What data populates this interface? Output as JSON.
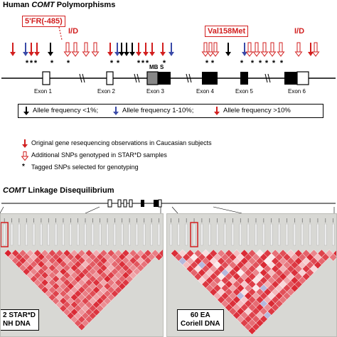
{
  "title_prefix": "Human ",
  "title_gene": "COMT",
  "title_suffix": " Polymorphisms",
  "callouts": {
    "fr": "5'FR(-485)",
    "id_left": "I/D",
    "val": "Val158Met",
    "id_right": "I/D",
    "mb": "MB",
    "s": "S"
  },
  "exons": [
    "Exon 1",
    "Exon 2",
    "Exon 3",
    "Exon 4",
    "Exon 5",
    "Exon 6"
  ],
  "legend": [
    "Allele frequency <1%;",
    "Allele frequency 1-10%;",
    "Allele frequency >10%"
  ],
  "key": [
    "Original gene resequencing  observations in Caucasian subjects",
    "Additional SNPs genotyped in STAR*D samples",
    "Tagged SNPs selected for genotyping"
  ],
  "ld_title_gene": "COMT",
  "ld_title_suffix": " Linkage Disequilibrium",
  "panels": {
    "left_line1": "2 STAR*D",
    "left_line2": "NH DNA",
    "right_line1": "60 EA",
    "right_line2": "Coriell DNA"
  },
  "colors": {
    "red": "#d21f1f",
    "blue": "#3a4aa8",
    "ld_high": "#d9232e",
    "ld_low": "#ffffff",
    "ld_blue": "#b5b8dc"
  },
  "ld_data": {
    "left_matrix": [
      [
        1.0,
        0.92,
        0.68,
        0.41,
        0.9,
        0.55,
        0.83,
        0.74,
        0.95,
        0.44,
        0.62,
        0.88,
        0.37,
        0.71,
        0.8,
        0.52,
        0.93,
        0.66,
        0.48,
        0.85,
        0.59,
        0.91
      ],
      [
        0.46,
        0.88,
        0.73,
        0.35,
        0.97,
        0.61,
        0.82,
        0.54,
        0.79,
        0.92,
        0.43,
        0.7,
        0.86,
        0.51,
        0.64,
        0.95,
        0.39,
        0.76,
        0.84,
        0.57,
        0.9
      ],
      [
        0.69,
        0.94,
        0.47,
        0.83,
        0.58,
        0.75,
        0.99,
        0.4,
        0.66,
        0.87,
        0.53,
        0.78,
        0.93,
        0.45,
        0.71,
        0.6,
        0.89,
        0.36,
        0.81
      ],
      [
        0.87,
        0.5,
        0.72,
        0.96,
        0.42,
        0.65,
        0.8,
        0.57,
        0.91,
        0.34,
        0.74,
        0.85,
        0.48,
        0.68,
        0.94,
        0.55,
        0.77,
        0.63
      ],
      [
        0.62,
        0.9,
        0.38,
        0.77,
        0.86,
        0.49,
        0.7,
        0.95,
        0.44,
        0.81,
        0.59,
        0.92,
        0.36,
        0.73,
        0.88,
        0.52,
        0.67
      ],
      [
        0.93,
        0.55,
        0.81,
        0.47,
        0.68,
        0.97,
        0.39,
        0.76,
        0.85,
        0.6,
        0.9,
        0.43,
        0.72,
        0.58,
        0.84,
        0.49
      ],
      [
        0.41,
        0.78,
        0.91,
        0.63,
        0.35,
        0.82,
        0.56,
        0.94,
        0.69,
        0.46,
        0.75,
        0.87,
        0.52,
        0.96,
        0.4
      ],
      [
        0.84,
        0.6,
        0.45,
        0.89,
        0.73,
        0.51,
        0.92,
        0.37,
        0.8,
        0.66,
        0.98,
        0.44,
        0.71,
        0.57
      ],
      [
        0.57,
        0.95,
        0.7,
        0.42,
        0.86,
        0.64,
        0.48,
        0.83,
        0.93,
        0.39,
        0.61,
        0.79,
        0.9
      ],
      [
        0.76,
        0.43,
        0.88,
        0.59,
        0.97,
        0.36,
        0.74,
        0.52,
        0.67,
        0.85,
        0.47,
        0.94
      ],
      [
        0.91,
        0.68,
        0.53,
        0.8,
        0.45,
        0.89,
        0.62,
        0.96,
        0.38,
        0.72,
        0.83
      ],
      [
        0.49,
        0.86,
        0.75,
        0.4,
        0.93,
        0.58,
        0.81,
        0.46,
        0.69,
        0.9
      ],
      [
        0.82,
        0.37,
        0.64,
        0.95,
        0.54,
        0.77,
        0.42,
        0.87,
        0.6
      ],
      [
        0.65,
        0.92,
        0.48,
        0.71,
        0.85,
        0.39,
        0.96,
        0.56
      ],
      [
        0.44,
        0.79,
        0.9,
        0.58,
        0.67,
        0.94,
        0.51
      ],
      [
        0.88,
        0.55,
        0.73,
        0.41,
        0.83,
        0.62
      ],
      [
        0.6,
        0.97,
        0.47,
        0.78,
        0.92
      ],
      [
        0.93,
        0.45,
        0.69,
        0.86
      ],
      [
        0.52,
        0.84,
        0.74
      ],
      [
        0.76,
        0.58
      ],
      [
        0.89
      ]
    ],
    "right_matrix": [
      [
        0.95,
        0.2,
        0.88,
        0.7,
        0.15,
        0.92,
        0.6,
        0.85,
        0.3,
        0.97,
        0.78,
        0.1,
        0.9,
        0.65,
        0.8,
        0.25,
        0.93,
        0.72,
        0.55,
        0.86,
        0.4,
        0.98
      ],
      [
        0.75,
        0.9,
        0.1,
        0.82,
        0.96,
        0.35,
        0.68,
        0.91,
        0.2,
        0.87,
        0.58,
        0.94,
        0.12,
        0.79,
        0.88,
        0.45,
        0.7,
        0.97,
        0.3,
        0.84,
        0.62
      ],
      [
        0.88,
        0.4,
        0.93,
        0.66,
        0.18,
        0.9,
        0.74,
        0.25,
        0.95,
        0.62,
        0.85,
        0.08,
        0.91,
        0.5,
        0.77,
        0.96,
        0.22,
        0.83,
        0.69
      ],
      [
        0.3,
        0.86,
        0.72,
        0.94,
        0.1,
        0.81,
        0.65,
        0.92,
        0.38,
        0.78,
        0.97,
        0.15,
        0.88,
        0.6,
        0.9,
        0.28,
        0.74,
        0.95
      ],
      [
        0.92,
        0.15,
        0.8,
        0.45,
        0.89,
        0.22,
        0.97,
        0.58,
        0.84,
        0.12,
        0.71,
        0.93,
        0.35,
        0.86,
        0.64,
        0.9,
        0.18
      ],
      [
        0.7,
        0.95,
        0.25,
        0.87,
        0.62,
        0.91,
        0.08,
        0.79,
        0.55,
        0.96,
        0.3,
        0.82,
        0.68,
        0.94,
        0.2,
        0.76
      ],
      [
        0.85,
        0.35,
        0.9,
        0.1,
        0.76,
        0.94,
        0.48,
        0.88,
        0.14,
        0.83,
        0.65,
        0.97,
        0.28,
        0.72,
        0.91
      ],
      [
        0.2,
        0.93,
        0.68,
        0.86,
        0.3,
        0.79,
        0.95,
        0.12,
        0.9,
        0.58,
        0.84,
        0.4,
        0.96,
        0.66
      ],
      [
        0.91,
        0.6,
        0.15,
        0.95,
        0.72,
        0.25,
        0.87,
        0.81,
        0.35,
        0.93,
        0.18,
        0.77,
        0.89
      ],
      [
        0.65,
        0.88,
        0.82,
        0.4,
        0.96,
        0.58,
        0.1,
        0.92,
        0.74,
        0.28,
        0.85,
        0.97
      ],
      [
        0.94,
        0.22,
        0.77,
        0.9,
        0.14,
        0.86,
        0.69,
        0.95,
        0.32,
        0.8,
        0.6
      ],
      [
        0.38,
        0.91,
        0.55,
        0.84,
        0.97,
        0.42,
        0.88,
        0.18,
        0.93,
        0.7
      ],
      [
        0.89,
        0.7,
        0.96,
        0.25,
        0.81,
        0.92,
        0.36,
        0.85,
        0.62
      ],
      [
        0.58,
        0.94,
        0.3,
        0.9,
        0.67,
        0.15,
        0.97,
        0.78
      ],
      [
        0.92,
        0.45,
        0.86,
        0.72,
        0.95,
        0.52,
        0.83
      ],
      [
        0.76,
        0.97,
        0.2,
        0.88,
        0.64,
        0.9
      ],
      [
        0.93,
        0.6,
        0.85,
        0.34,
        0.96
      ],
      [
        0.48,
        0.89,
        0.74,
        0.92
      ],
      [
        0.87,
        0.66,
        0.95
      ],
      [
        0.7,
        0.9
      ],
      [
        0.96
      ]
    ],
    "right_blue_cells": [
      [
        2,
        0
      ],
      [
        3,
        2
      ],
      [
        5,
        4
      ],
      [
        11,
        3
      ],
      [
        13,
        5
      ],
      [
        9,
        7
      ],
      [
        16,
        4
      ]
    ]
  }
}
